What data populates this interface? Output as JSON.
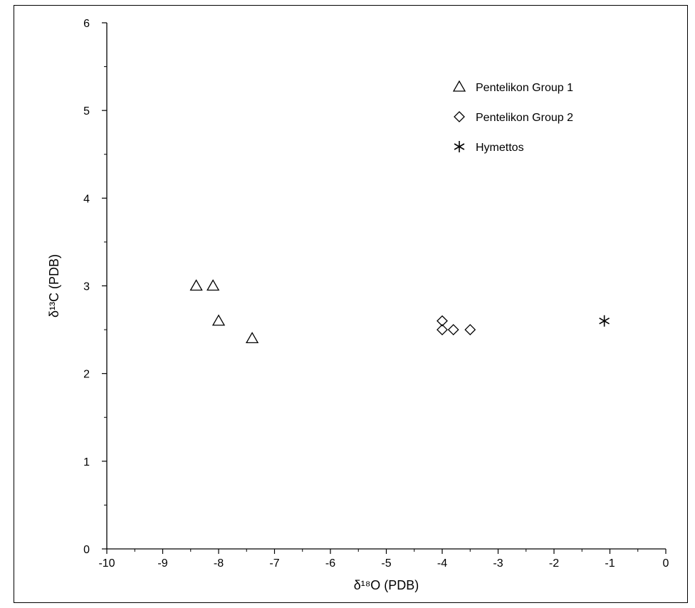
{
  "chart_data": {
    "type": "scatter",
    "xlabel": "δ¹⁸O (PDB)",
    "ylabel": "δ¹³C (PDB)",
    "xlim": [
      -10,
      0
    ],
    "ylim": [
      0,
      6
    ],
    "x_ticks": [
      -10,
      -9,
      -8,
      -7,
      -6,
      -5,
      -4,
      -3,
      -2,
      -1,
      0
    ],
    "y_ticks": [
      0,
      1,
      2,
      3,
      4,
      5,
      6
    ],
    "legend_position": "top-right",
    "grid": false,
    "series": [
      {
        "name": "Pentelikon Group 1",
        "marker": "triangle",
        "x": [
          -8.4,
          -8.1,
          -8.0,
          -7.4
        ],
        "y": [
          3.0,
          3.0,
          2.6,
          2.4
        ]
      },
      {
        "name": "Pentelikon Group 2",
        "marker": "diamond",
        "x": [
          -4.0,
          -4.0,
          -3.8,
          -3.5
        ],
        "y": [
          2.6,
          2.5,
          2.5,
          2.5
        ]
      },
      {
        "name": "Hymettos",
        "marker": "asterisk",
        "x": [
          -1.1
        ],
        "y": [
          2.6
        ]
      }
    ]
  }
}
